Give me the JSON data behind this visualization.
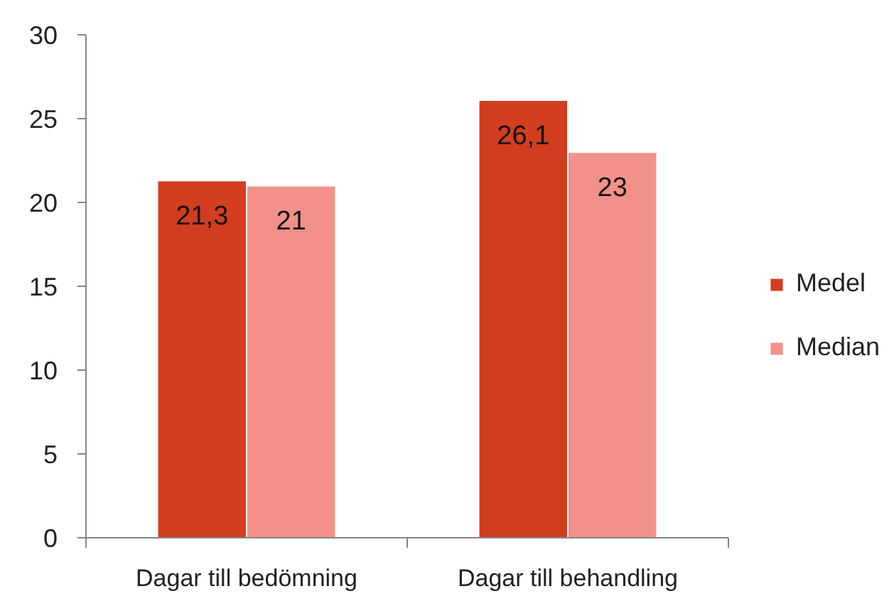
{
  "chart_data": {
    "type": "bar",
    "categories": [
      "Dagar till bedömning",
      "Dagar till behandling"
    ],
    "series": [
      {
        "name": "Medel",
        "color": "#d33d20",
        "values": [
          21.3,
          26.1
        ],
        "value_labels": [
          "21,3",
          "26,1"
        ]
      },
      {
        "name": "Median",
        "color": "#f2918a",
        "values": [
          21,
          23
        ],
        "value_labels": [
          "21",
          "23"
        ]
      }
    ],
    "ylim": [
      0,
      30
    ],
    "yticks": [
      0,
      5,
      10,
      15,
      20,
      25,
      30
    ],
    "grid": false,
    "legend": "right"
  }
}
